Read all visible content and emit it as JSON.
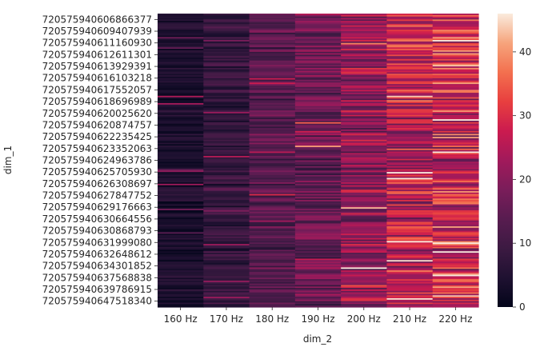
{
  "chart_data": {
    "type": "heatmap",
    "title": "",
    "xlabel": "dim_2",
    "ylabel": "dim_1",
    "columns": [
      "160 Hz",
      "170 Hz",
      "180 Hz",
      "190 Hz",
      "200 Hz",
      "210 Hz",
      "220 Hz"
    ],
    "row_tick_labels": [
      "720575940606866377",
      "720575940609407939",
      "720575940611160930",
      "720575940612611301",
      "720575940613929391",
      "720575940616103218",
      "720575940617552057",
      "720575940618696989",
      "720575940620025620",
      "720575940620874757",
      "720575940622235425",
      "720575940623352063",
      "720575940624963786",
      "720575940625705930",
      "720575940626308697",
      "720575940627847752",
      "720575940629176663",
      "720575940630664556",
      "720575940630868793",
      "720575940631999080",
      "720575940632648612",
      "720575940634301852",
      "720575940637568838",
      "720575940639786915",
      "720575940647518340"
    ],
    "column_mean_values": [
      4,
      8,
      13,
      16,
      21,
      26,
      28
    ],
    "colorbar": {
      "colormap": "rocket",
      "min": 0,
      "max": 46,
      "ticks": [
        0,
        10,
        20,
        30,
        40
      ]
    },
    "grid": false
  }
}
